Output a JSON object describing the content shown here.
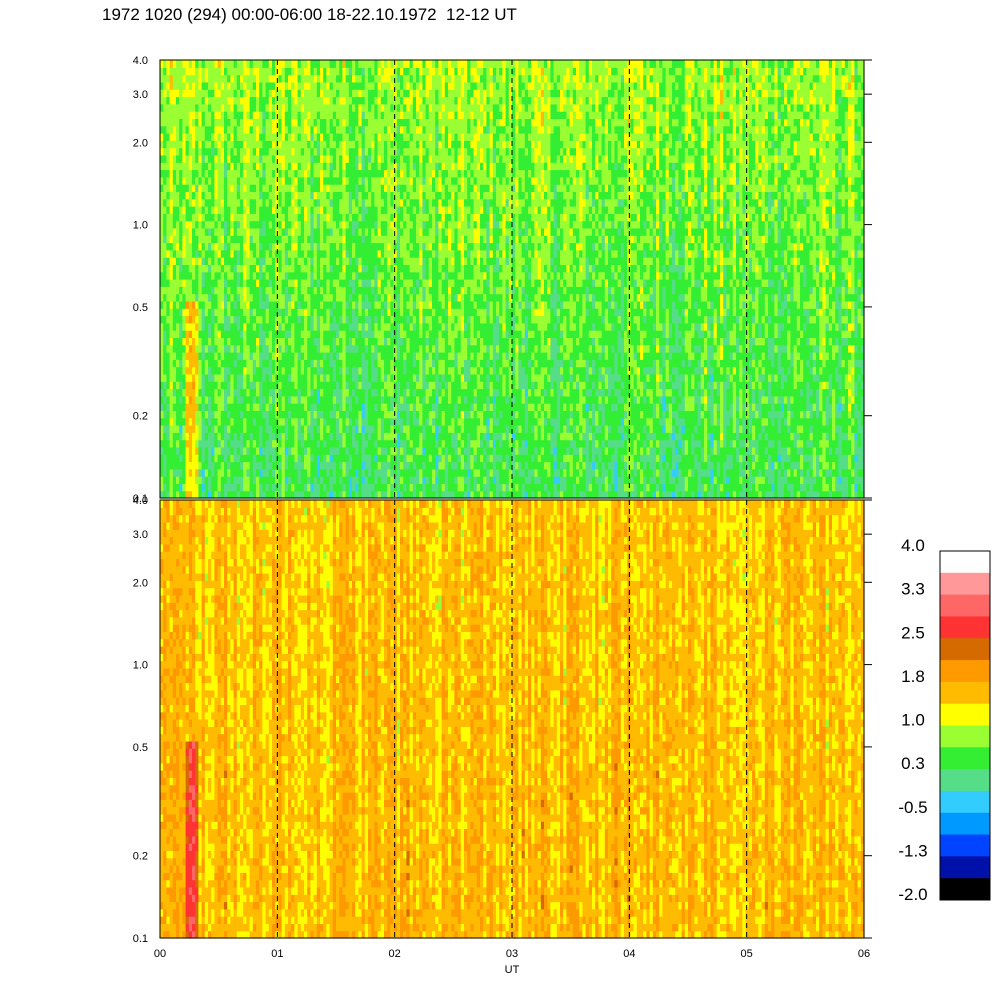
{
  "title": "1972 1020 (294) 00:00-06:00 18-22.10.1972  12-12 UT",
  "chart_data": {
    "type": "heatmap",
    "xlabel": "UT",
    "x_ticks": [
      "00",
      "01",
      "02",
      "03",
      "04",
      "05",
      "06"
    ],
    "x_range": [
      0,
      6
    ],
    "y_scale": "log",
    "y_range": [
      0.1,
      4.0
    ],
    "y_ticks": [
      {
        "label": "0.1",
        "value": 0.1
      },
      {
        "label": "0.2",
        "value": 0.2
      },
      {
        "label": "0.5",
        "value": 0.5
      },
      {
        "label": "1.0",
        "value": 1.0
      },
      {
        "label": "2.0",
        "value": 2.0
      },
      {
        "label": "3.0",
        "value": 3.0
      },
      {
        "label": "4.0",
        "value": 4.0
      }
    ],
    "hour_dashed_lines": [
      1,
      2,
      3,
      4,
      5
    ],
    "panels": [
      {
        "name": "upper",
        "dominant_levels": "0.3 to 1.0 (green / teal, yellow near top)",
        "base_level": 0.3
      },
      {
        "name": "lower",
        "dominant_levels": "1.0 to 2.5 (yellow / orange)",
        "base_level": 1.6
      }
    ],
    "colorbar": {
      "labels": [
        "4.0",
        "3.3",
        "2.5",
        "1.8",
        "1.0",
        "0.3",
        "-0.5",
        "-1.3",
        "-2.0"
      ],
      "colors": [
        "#ffffff",
        "#ff9999",
        "#ff6666",
        "#ff3333",
        "#d46a00",
        "#ff9900",
        "#ffbb00",
        "#ffff00",
        "#99ff33",
        "#33ee33",
        "#55dd88",
        "#33ccff",
        "#0099ff",
        "#0044ff",
        "#0011aa",
        "#000000"
      ]
    }
  }
}
